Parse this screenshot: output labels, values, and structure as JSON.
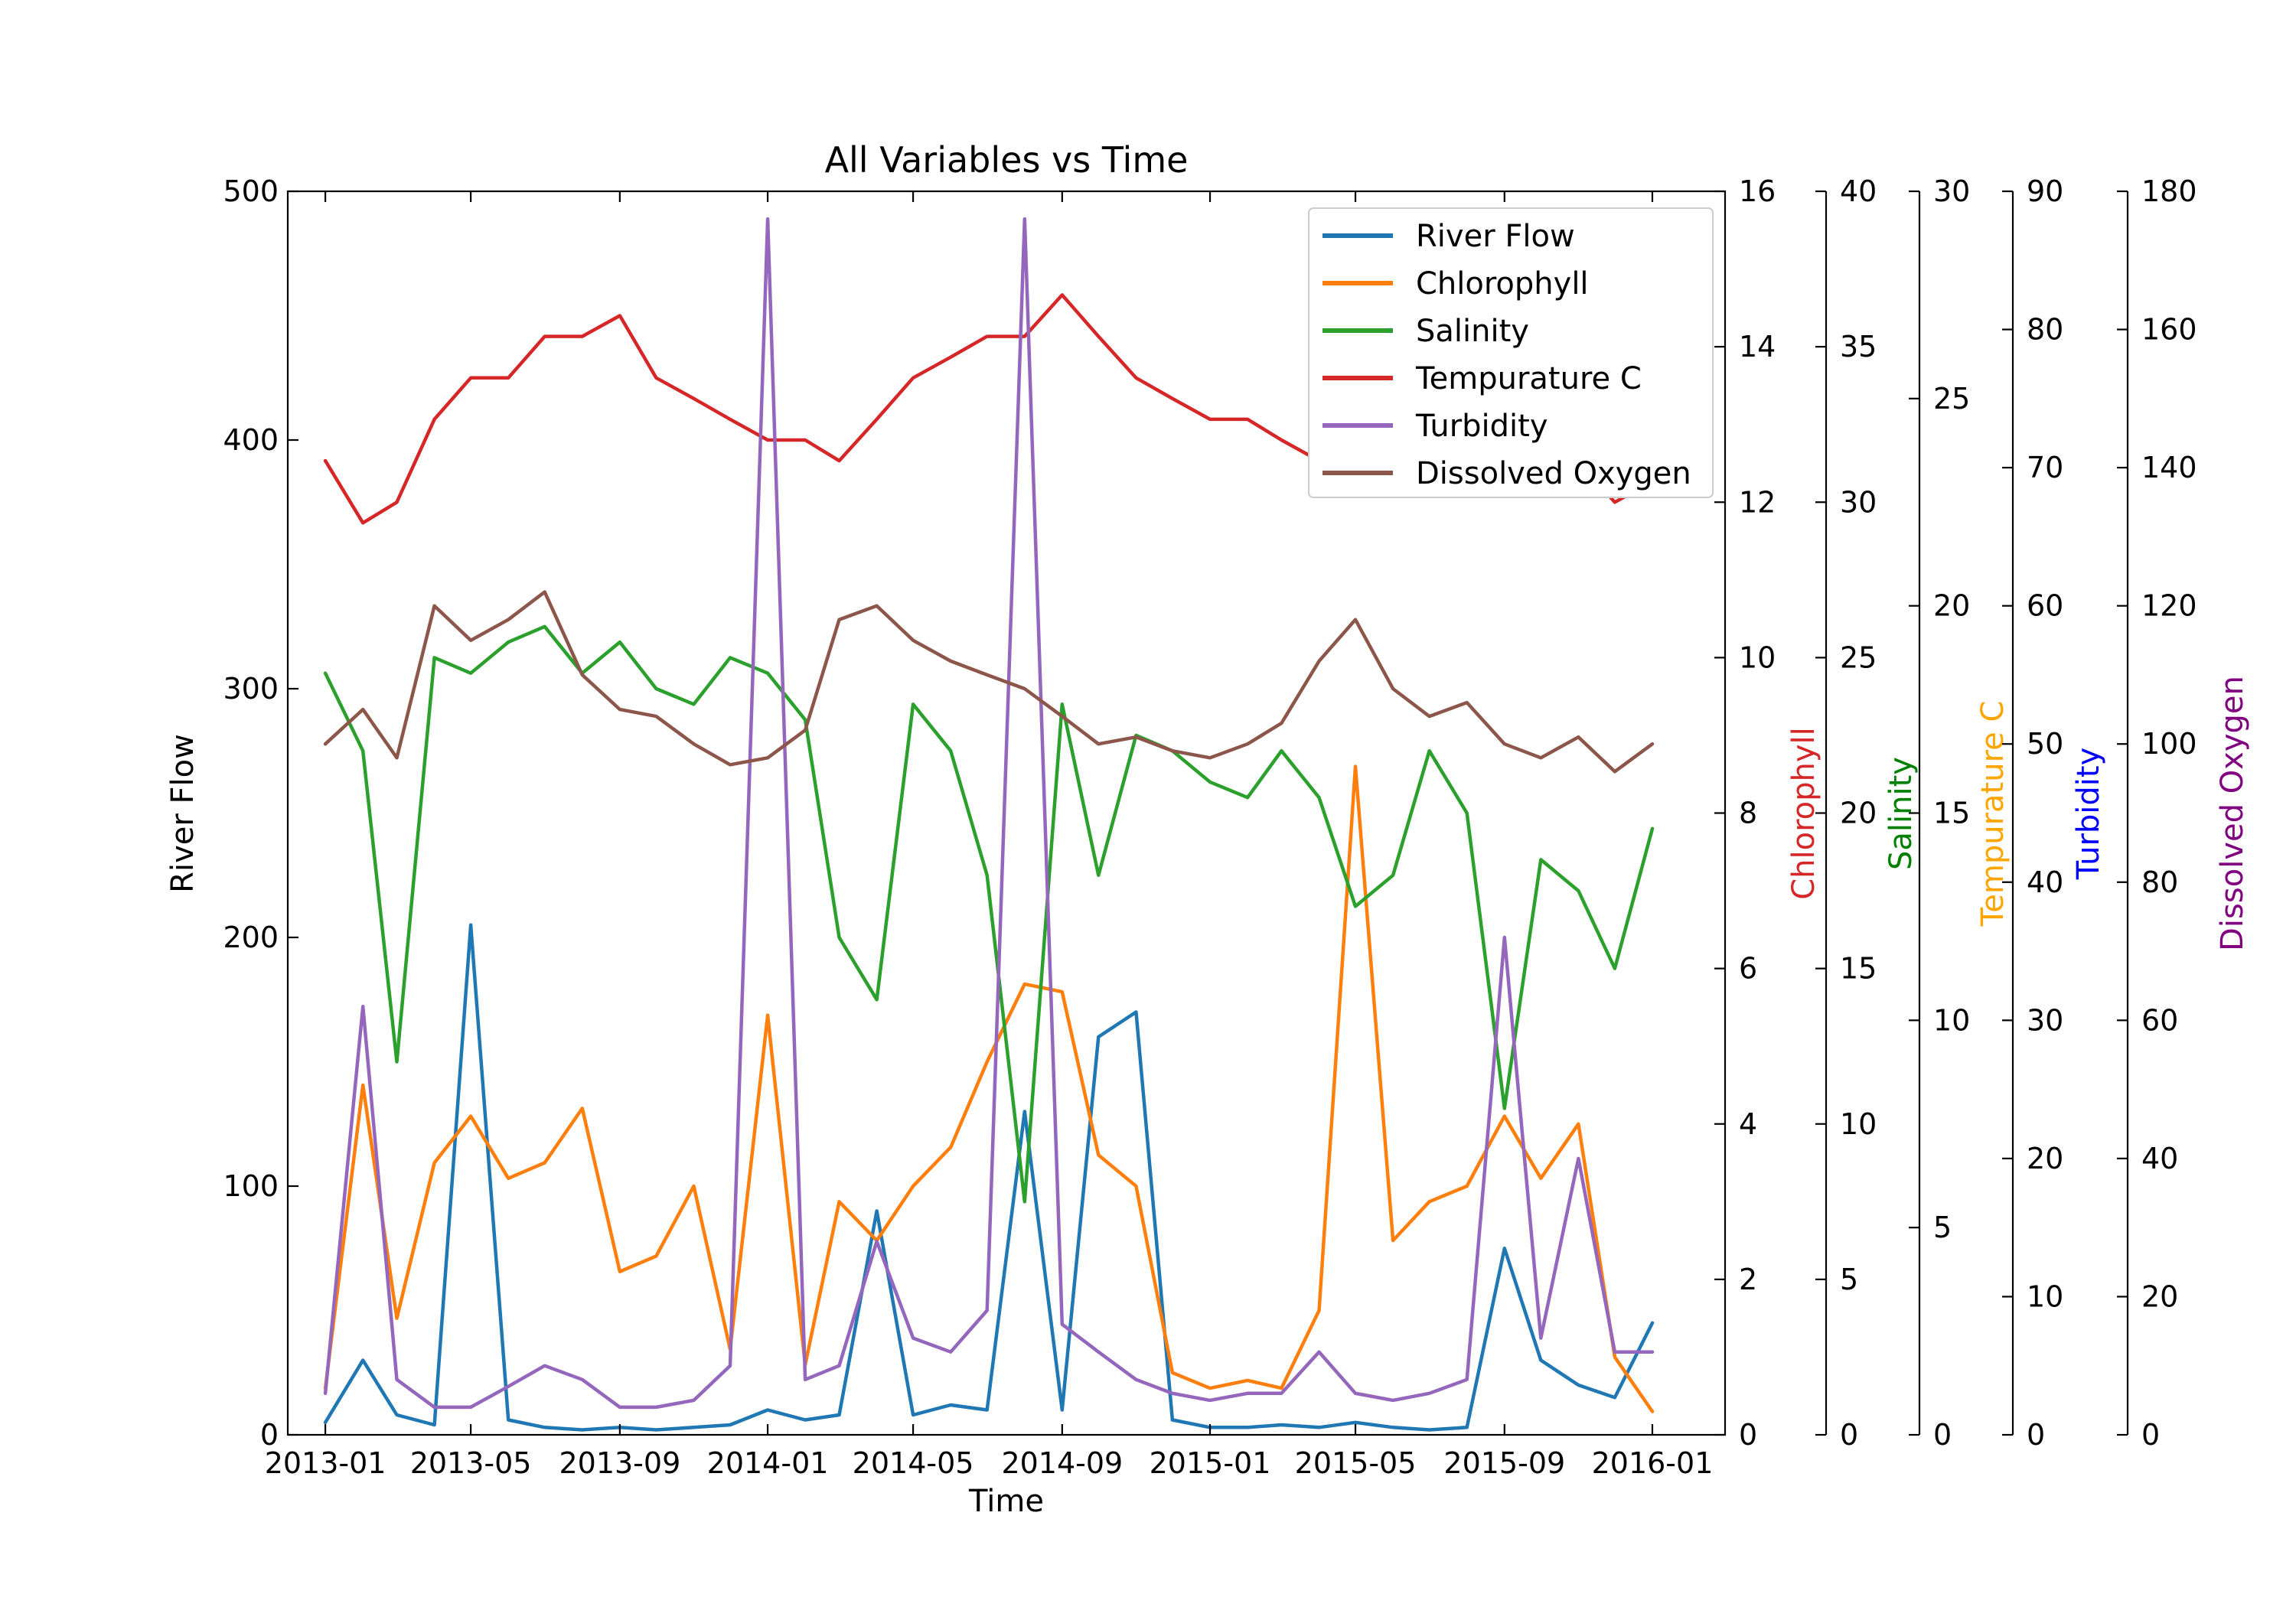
{
  "chart_data": {
    "type": "line",
    "title": "All Variables vs Time",
    "xlabel": "Time",
    "ylabel": "River Flow",
    "ylim": [
      0,
      500
    ],
    "x_ticks": [
      "2013-01",
      "2013-05",
      "2013-09",
      "2014-01",
      "2014-05",
      "2014-09",
      "2015-01",
      "2015-05",
      "2015-09",
      "2016-01"
    ],
    "y_ticks": [
      "0",
      "100",
      "200",
      "300",
      "400",
      "500"
    ],
    "legend_position": "top-right",
    "grid": false,
    "secondary_axes": [
      {
        "label": "Chlorophyll",
        "color": "#d62728",
        "ylim": [
          0,
          16
        ],
        "ticks": [
          "0",
          "2",
          "4",
          "6",
          "8",
          "10",
          "12",
          "14",
          "16"
        ]
      },
      {
        "label": "Salinity",
        "color": "#008000",
        "ylim": [
          0,
          40
        ],
        "ticks": [
          "0",
          "5",
          "10",
          "15",
          "20",
          "25",
          "30",
          "35",
          "40"
        ]
      },
      {
        "label": "Tempurature C",
        "color": "#ffa500",
        "ylim": [
          0,
          30
        ],
        "ticks": [
          "0",
          "5",
          "10",
          "15",
          "20",
          "25",
          "30"
        ]
      },
      {
        "label": "Turbidity",
        "color": "#0000ff",
        "ylim": [
          0,
          90
        ],
        "ticks": [
          "0",
          "10",
          "20",
          "30",
          "40",
          "50",
          "60",
          "70",
          "80",
          "90"
        ]
      },
      {
        "label": "Dissolved Oxygen",
        "color": "#800080",
        "ylim": [
          0,
          180
        ],
        "ticks": [
          "0",
          "20",
          "40",
          "60",
          "80",
          "100",
          "120",
          "140",
          "160",
          "180"
        ]
      }
    ],
    "series": [
      {
        "name": "River Flow",
        "color": "#1f77b4",
        "axis": 0,
        "x": [
          "2013-01-01",
          "2013-02-01",
          "2013-03-01",
          "2013-04-01",
          "2013-05-01",
          "2013-06-01",
          "2013-07-01",
          "2013-08-01",
          "2013-09-01",
          "2013-10-01",
          "2013-11-01",
          "2013-12-01",
          "2014-01-01",
          "2014-02-01",
          "2014-03-01",
          "2014-04-01",
          "2014-05-01",
          "2014-06-01",
          "2014-07-01",
          "2014-08-01",
          "2014-09-01",
          "2014-10-01",
          "2014-11-01",
          "2014-12-01",
          "2015-01-01",
          "2015-02-01",
          "2015-03-01",
          "2015-04-01",
          "2015-05-01",
          "2015-06-01",
          "2015-07-01",
          "2015-08-01",
          "2015-09-01",
          "2015-10-01",
          "2015-11-01",
          "2015-12-01",
          "2016-01-01"
        ],
        "values": [
          5,
          30,
          8,
          4,
          205,
          6,
          3,
          2,
          3,
          2,
          3,
          4,
          10,
          6,
          8,
          90,
          8,
          12,
          10,
          130,
          10,
          160,
          170,
          6,
          3,
          3,
          4,
          3,
          5,
          3,
          2,
          3,
          75,
          30,
          20,
          15,
          45
        ]
      },
      {
        "name": "Chlorophyll",
        "color": "#ff7f0e",
        "axis": 1,
        "x": [
          "2013-01-01",
          "2013-02-01",
          "2013-03-01",
          "2013-04-01",
          "2013-05-01",
          "2013-06-01",
          "2013-07-01",
          "2013-08-01",
          "2013-09-01",
          "2013-10-01",
          "2013-11-01",
          "2013-12-01",
          "2014-01-01",
          "2014-02-01",
          "2014-03-01",
          "2014-04-01",
          "2014-05-01",
          "2014-06-01",
          "2014-07-01",
          "2014-08-01",
          "2014-09-01",
          "2014-10-01",
          "2014-11-01",
          "2014-12-01",
          "2015-01-01",
          "2015-02-01",
          "2015-03-01",
          "2015-04-01",
          "2015-05-01",
          "2015-06-01",
          "2015-07-01",
          "2015-08-01",
          "2015-09-01",
          "2015-10-01",
          "2015-11-01",
          "2015-12-01",
          "2016-01-01"
        ],
        "values": [
          0.6,
          4.5,
          1.5,
          3.5,
          4.1,
          3.3,
          3.5,
          4.2,
          2.1,
          2.3,
          3.2,
          1.1,
          5.4,
          0.9,
          3.0,
          2.5,
          3.2,
          3.7,
          4.8,
          5.8,
          5.7,
          3.6,
          3.2,
          0.8,
          0.6,
          0.7,
          0.6,
          1.6,
          8.6,
          2.5,
          3.0,
          3.2,
          4.1,
          3.3,
          4.0,
          1.0,
          0.3
        ]
      },
      {
        "name": "Salinity",
        "color": "#2ca02c",
        "axis": 2,
        "x": [
          "2013-01-01",
          "2013-02-01",
          "2013-03-01",
          "2013-04-01",
          "2013-05-01",
          "2013-06-01",
          "2013-07-01",
          "2013-08-01",
          "2013-09-01",
          "2013-10-01",
          "2013-11-01",
          "2013-12-01",
          "2014-01-01",
          "2014-02-01",
          "2014-03-01",
          "2014-04-01",
          "2014-05-01",
          "2014-06-01",
          "2014-07-01",
          "2014-08-01",
          "2014-09-01",
          "2014-10-01",
          "2014-11-01",
          "2014-12-01",
          "2015-01-01",
          "2015-02-01",
          "2015-03-01",
          "2015-04-01",
          "2015-05-01",
          "2015-06-01",
          "2015-07-01",
          "2015-08-01",
          "2015-09-01",
          "2015-10-01",
          "2015-11-01",
          "2015-12-01",
          "2016-01-01"
        ],
        "values": [
          24.5,
          22.0,
          12.0,
          25.0,
          24.5,
          25.5,
          26.0,
          24.5,
          25.5,
          24.0,
          23.5,
          25.0,
          24.5,
          23.0,
          16.0,
          14.0,
          23.5,
          22.0,
          18.0,
          7.5,
          23.5,
          18.0,
          22.5,
          22.0,
          21.0,
          20.5,
          22.0,
          20.5,
          17.0,
          18.0,
          22.0,
          20.0,
          10.5,
          18.5,
          17.5,
          15.0,
          19.5
        ]
      },
      {
        "name": "Tempurature C",
        "color": "#d62728",
        "axis": 3,
        "x": [
          "2013-01-01",
          "2013-02-01",
          "2013-03-01",
          "2013-04-01",
          "2013-05-01",
          "2013-06-01",
          "2013-07-01",
          "2013-08-01",
          "2013-09-01",
          "2013-10-01",
          "2013-11-01",
          "2013-12-01",
          "2014-01-01",
          "2014-02-01",
          "2014-03-01",
          "2014-04-01",
          "2014-05-01",
          "2014-06-01",
          "2014-07-01",
          "2014-08-01",
          "2014-09-01",
          "2014-10-01",
          "2014-11-01",
          "2014-12-01",
          "2015-01-01",
          "2015-02-01",
          "2015-03-01",
          "2015-04-01",
          "2015-05-01",
          "2015-06-01",
          "2015-07-01",
          "2015-08-01",
          "2015-09-01",
          "2015-10-01",
          "2015-11-01",
          "2015-12-01",
          "2016-01-01"
        ],
        "values": [
          23.5,
          22.0,
          22.5,
          24.5,
          25.5,
          25.5,
          26.5,
          26.5,
          27.0,
          25.5,
          25.0,
          24.5,
          24.0,
          24.0,
          23.5,
          24.5,
          25.5,
          26.0,
          26.5,
          26.5,
          27.5,
          26.5,
          25.5,
          25.0,
          24.5,
          24.5,
          24.0,
          23.5,
          24.0,
          25.5,
          26.5,
          27.0,
          26.5,
          25.5,
          23.5,
          22.5,
          23.0
        ]
      },
      {
        "name": "Turbidity",
        "color": "#9467bd",
        "axis": 4,
        "x": [
          "2013-01-01",
          "2013-02-01",
          "2013-03-01",
          "2013-04-01",
          "2013-05-01",
          "2013-06-01",
          "2013-07-01",
          "2013-08-01",
          "2013-09-01",
          "2013-10-01",
          "2013-11-01",
          "2013-12-01",
          "2014-01-01",
          "2014-02-01",
          "2014-03-01",
          "2014-04-01",
          "2014-05-01",
          "2014-06-01",
          "2014-07-01",
          "2014-08-01",
          "2014-09-01",
          "2014-10-01",
          "2014-11-01",
          "2014-12-01",
          "2015-01-01",
          "2015-02-01",
          "2015-03-01",
          "2015-04-01",
          "2015-05-01",
          "2015-06-01",
          "2015-07-01",
          "2015-08-01",
          "2015-09-01",
          "2015-10-01",
          "2015-11-01",
          "2015-12-01",
          "2016-01-01"
        ],
        "values": [
          3.0,
          31.0,
          4.0,
          2.0,
          2.0,
          3.5,
          5.0,
          4.0,
          2.0,
          2.0,
          2.5,
          5.0,
          88.0,
          4.0,
          5.0,
          14.0,
          7.0,
          6.0,
          9.0,
          88.0,
          8.0,
          6.0,
          4.0,
          3.0,
          2.5,
          3.0,
          3.0,
          6.0,
          3.0,
          2.5,
          3.0,
          4.0,
          36.0,
          7.0,
          20.0,
          6.0,
          6.0
        ]
      },
      {
        "name": "Dissolved Oxygen",
        "color": "#8c564b",
        "axis": 5,
        "x": [
          "2013-01-01",
          "2013-02-01",
          "2013-03-01",
          "2013-04-01",
          "2013-05-01",
          "2013-06-01",
          "2013-07-01",
          "2013-08-01",
          "2013-09-01",
          "2013-10-01",
          "2013-11-01",
          "2013-12-01",
          "2014-01-01",
          "2014-02-01",
          "2014-03-01",
          "2014-04-01",
          "2014-05-01",
          "2014-06-01",
          "2014-07-01",
          "2014-08-01",
          "2014-09-01",
          "2014-10-01",
          "2014-11-01",
          "2014-12-01",
          "2015-01-01",
          "2015-02-01",
          "2015-03-01",
          "2015-04-01",
          "2015-05-01",
          "2015-06-01",
          "2015-07-01",
          "2015-08-01",
          "2015-09-01",
          "2015-10-01",
          "2015-11-01",
          "2015-12-01",
          "2016-01-01"
        ],
        "values": [
          100,
          105,
          98,
          120,
          115,
          118,
          122,
          110,
          105,
          104,
          100,
          97,
          98,
          102,
          118,
          120,
          115,
          112,
          110,
          108,
          104,
          100,
          101,
          99,
          98,
          100,
          103,
          112,
          118,
          108,
          104,
          106,
          100,
          98,
          101,
          96,
          100
        ]
      }
    ]
  }
}
